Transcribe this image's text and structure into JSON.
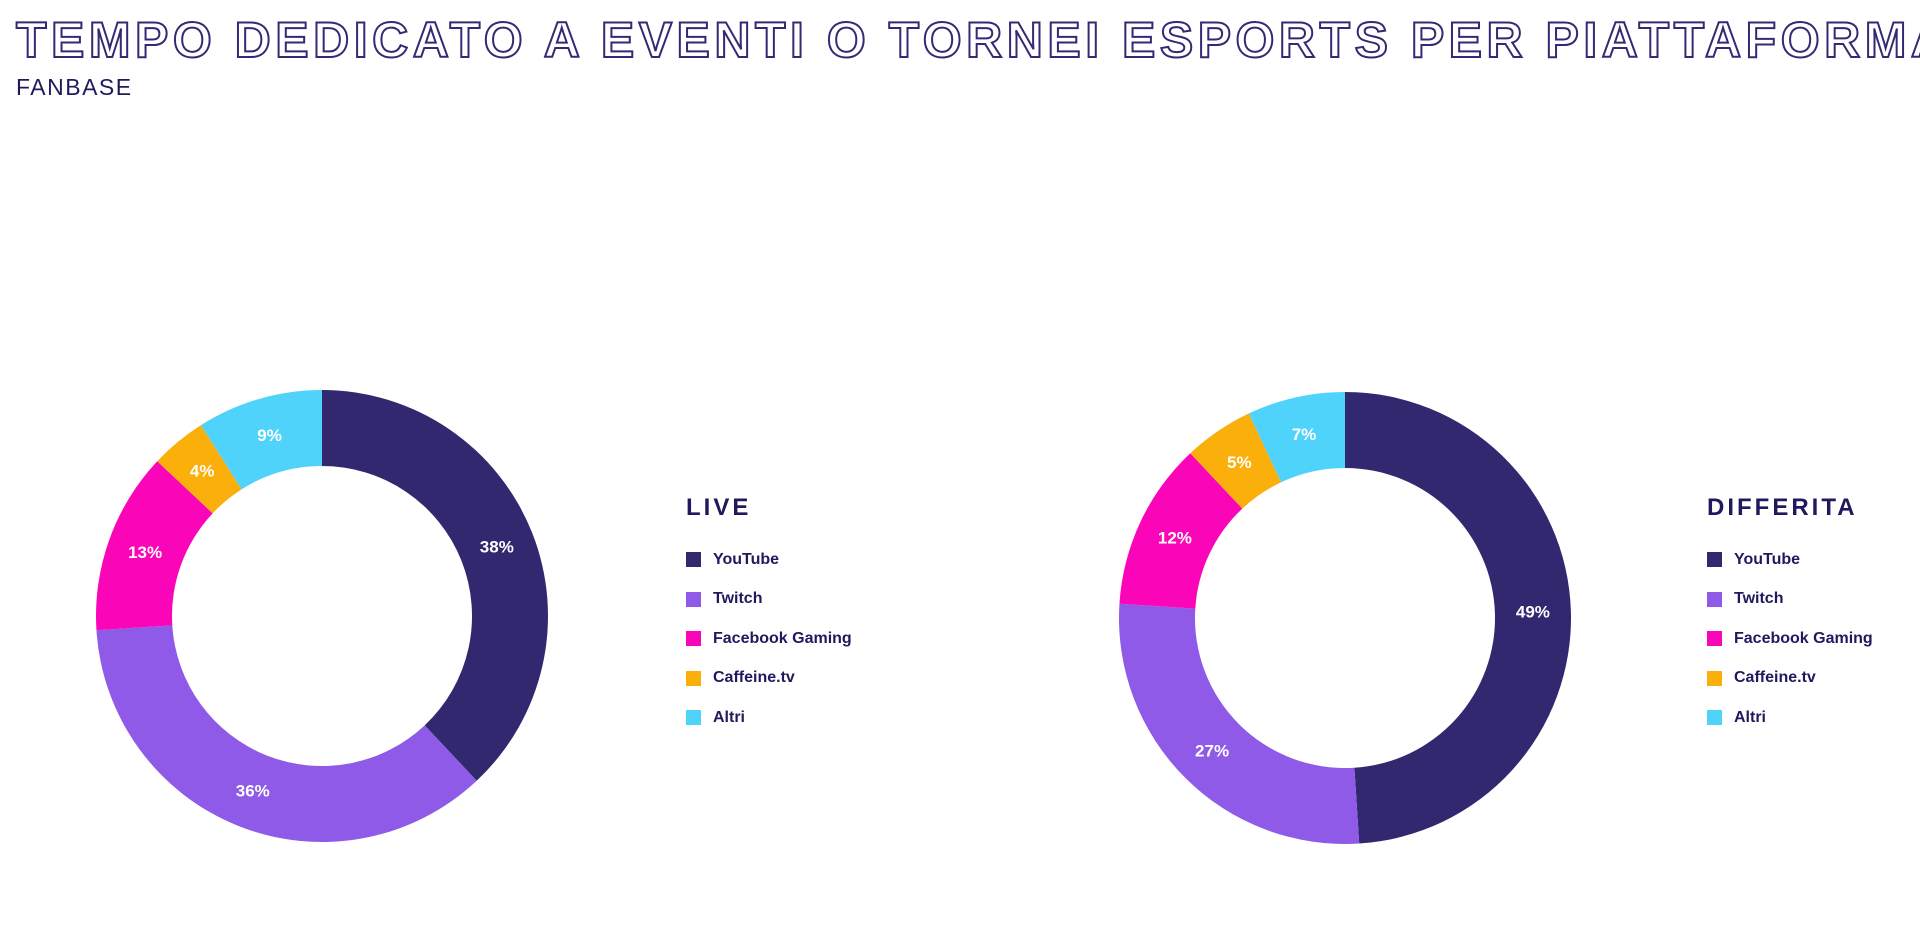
{
  "title": "TEMPO DEDICATO A EVENTI O TORNEI ESPORTS PER PIATTAFORMA",
  "subtitle": "FANBASE",
  "colors": {
    "YouTube": "#322870",
    "Twitch": "#8f5ae8",
    "Facebook Gaming": "#fb05b9",
    "Caffeine.tv": "#fbaf0a",
    "Altri": "#50d3fb"
  },
  "chart_data": [
    {
      "type": "pie",
      "title": "LIVE",
      "categories": [
        "YouTube",
        "Twitch",
        "Facebook Gaming",
        "Caffeine.tv",
        "Altri"
      ],
      "values": [
        38,
        36,
        13,
        4,
        9
      ],
      "labels": [
        "38%",
        "36%",
        "13%",
        "4%",
        "9%"
      ],
      "legend": [
        "YouTube",
        "Twitch",
        "Facebook Gaming",
        "Caffeine.tv",
        "Altri"
      ]
    },
    {
      "type": "pie",
      "title": "DIFFERITA",
      "categories": [
        "YouTube",
        "Twitch",
        "Facebook Gaming",
        "Caffeine.tv",
        "Altri"
      ],
      "values": [
        49,
        27,
        12,
        5,
        7
      ],
      "labels": [
        "49%",
        "27%",
        "12%",
        "5%",
        "7%"
      ],
      "legend": [
        "YouTube",
        "Twitch",
        "Facebook Gaming",
        "Caffeine.tv",
        "Altri"
      ]
    }
  ]
}
